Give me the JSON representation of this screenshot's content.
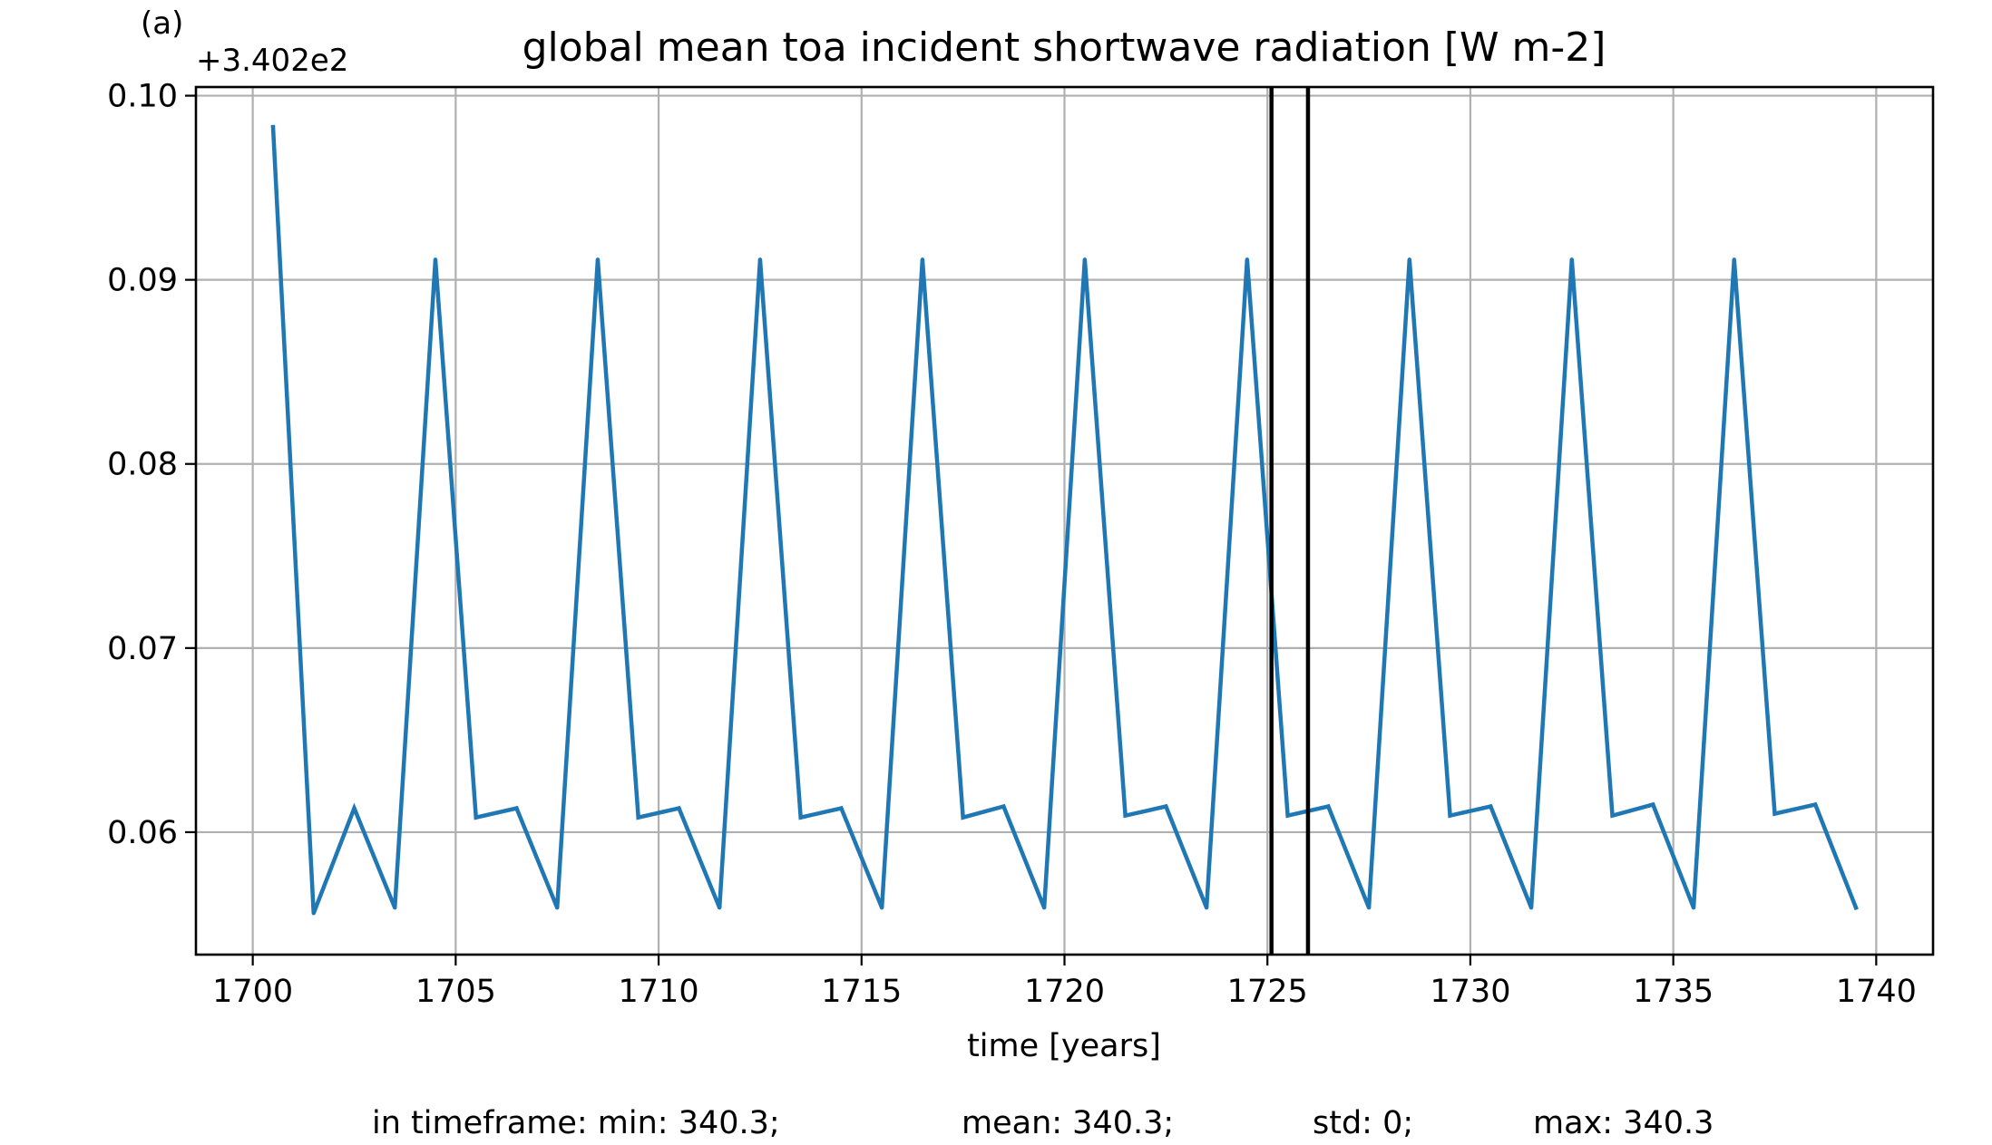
{
  "chart_data": {
    "type": "line",
    "panel_label": "(a)",
    "title": "global mean toa incident shortwave radiation [W m-2]",
    "offset_label": "+3.402e2",
    "xlabel": "time [years]",
    "ylabel": "",
    "xlim": [
      1698.6,
      1741.4
    ],
    "ylim": [
      0.05335,
      0.10047
    ],
    "xticks": [
      1700,
      1705,
      1710,
      1715,
      1720,
      1725,
      1730,
      1735,
      1740
    ],
    "xtick_labels": [
      "1700",
      "1705",
      "1710",
      "1715",
      "1720",
      "1725",
      "1730",
      "1735",
      "1740"
    ],
    "yticks": [
      0.06,
      0.07,
      0.08,
      0.09,
      0.1
    ],
    "ytick_labels": [
      "0.06",
      "0.07",
      "0.08",
      "0.09",
      "0.10"
    ],
    "grid": true,
    "series": [
      {
        "color": "#1f77b4",
        "x": [
          1700.5,
          1701.5,
          1702.5,
          1703.5,
          1704.5,
          1705.5,
          1706.5,
          1707.5,
          1708.5,
          1709.5,
          1710.5,
          1711.5,
          1712.5,
          1713.5,
          1714.5,
          1715.5,
          1716.5,
          1717.5,
          1718.5,
          1719.5,
          1720.5,
          1721.5,
          1722.5,
          1723.5,
          1724.5,
          1725.5,
          1726.5,
          1727.5,
          1728.5,
          1729.5,
          1730.5,
          1731.5,
          1732.5,
          1733.5,
          1734.5,
          1735.5,
          1736.5,
          1737.5,
          1738.5,
          1739.5
        ],
        "y": [
          0.0983,
          0.0556,
          0.0613,
          0.0559,
          0.0911,
          0.0608,
          0.0613,
          0.0559,
          0.0911,
          0.0608,
          0.0613,
          0.0559,
          0.0911,
          0.0608,
          0.0613,
          0.0559,
          0.0911,
          0.0608,
          0.0614,
          0.0559,
          0.0911,
          0.0609,
          0.0614,
          0.0559,
          0.0911,
          0.0609,
          0.0614,
          0.0559,
          0.0911,
          0.0609,
          0.0614,
          0.0559,
          0.0911,
          0.0609,
          0.0615,
          0.0559,
          0.0911,
          0.061,
          0.0615,
          0.0559
        ]
      }
    ],
    "vlines": [
      1725.1,
      1726.0
    ],
    "vline_color": "#000000",
    "footer": {
      "min": "in timeframe: min: 340.3;",
      "mean": "mean: 340.3;",
      "std": "std: 0;",
      "max": "max: 340.3"
    }
  }
}
